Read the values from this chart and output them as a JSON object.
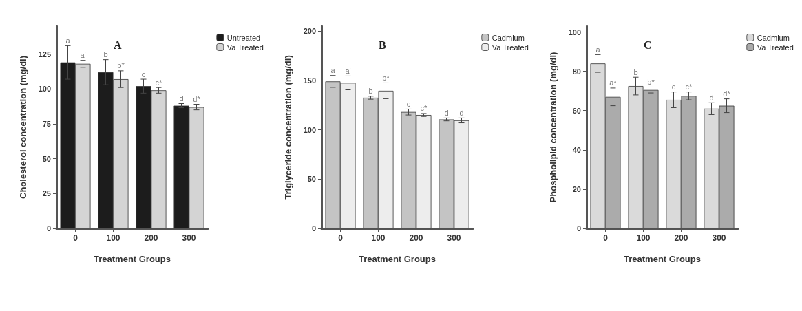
{
  "chart_data": [
    {
      "type": "bar",
      "title": "A",
      "xlabel": "Treatment Groups",
      "ylabel": "Cholesterol concentration (mg/dl)",
      "categories": [
        "0",
        "100",
        "200",
        "300"
      ],
      "ylim": [
        0,
        145
      ],
      "yticks": [
        0,
        25,
        50,
        75,
        100,
        125
      ],
      "grid": false,
      "legend": "top right",
      "series": [
        {
          "name": "Untreated",
          "color": "#1c1c1c",
          "values": [
            119,
            112,
            102,
            88
          ],
          "errors": [
            12,
            9,
            5,
            1.5
          ],
          "value_labels": [
            "a",
            "b",
            "c",
            "d"
          ]
        },
        {
          "name": "Va Treated",
          "color": "#d4d4d4",
          "values": [
            118,
            107,
            99,
            87
          ],
          "errors": [
            2.5,
            6,
            2,
            2
          ],
          "value_labels": [
            "a'",
            "b*",
            "c*",
            "d*"
          ]
        }
      ]
    },
    {
      "type": "bar",
      "title": "B",
      "xlabel": "Treatment Groups",
      "ylabel": "Triglyceride concentration (mg/dl)",
      "categories": [
        "0",
        "100",
        "200",
        "300"
      ],
      "ylim": [
        0,
        205
      ],
      "yticks": [
        0,
        50,
        100,
        150,
        200
      ],
      "grid": false,
      "legend": "top right",
      "series": [
        {
          "name": "Cadmium",
          "color": "#c4c4c4",
          "values": [
            149,
            132.5,
            118,
            110.5
          ],
          "errors": [
            6,
            1.5,
            3,
            1.5
          ],
          "value_labels": [
            "a",
            "b",
            "c",
            "d"
          ]
        },
        {
          "name": "Va Treated",
          "color": "#ededed",
          "values": [
            147.5,
            139.5,
            115,
            109.5
          ],
          "errors": [
            7,
            8,
            1.5,
            2.5
          ],
          "value_labels": [
            "a'",
            "b*",
            "c*",
            "d"
          ]
        }
      ]
    },
    {
      "type": "bar",
      "title": "C",
      "xlabel": "Treatment Groups",
      "ylabel": "Phospholipid concentration (mg/dl)",
      "categories": [
        "0",
        "100",
        "200",
        "300"
      ],
      "ylim": [
        0,
        103
      ],
      "yticks": [
        0,
        20,
        40,
        60,
        80,
        100
      ],
      "grid": false,
      "legend": "top right",
      "series": [
        {
          "name": "Cadmium",
          "color": "#dadada",
          "values": [
            84,
            72.5,
            65.5,
            61
          ],
          "errors": [
            4.5,
            4.5,
            4,
            3
          ],
          "value_labels": [
            "a",
            "b",
            "c",
            "d"
          ]
        },
        {
          "name": "Va Treated",
          "color": "#ababab",
          "values": [
            67,
            70.5,
            67.5,
            62.5
          ],
          "errors": [
            4.5,
            1.5,
            2,
            3.5
          ],
          "value_labels": [
            "a*",
            "b*",
            "c*",
            "d*"
          ]
        }
      ]
    }
  ]
}
